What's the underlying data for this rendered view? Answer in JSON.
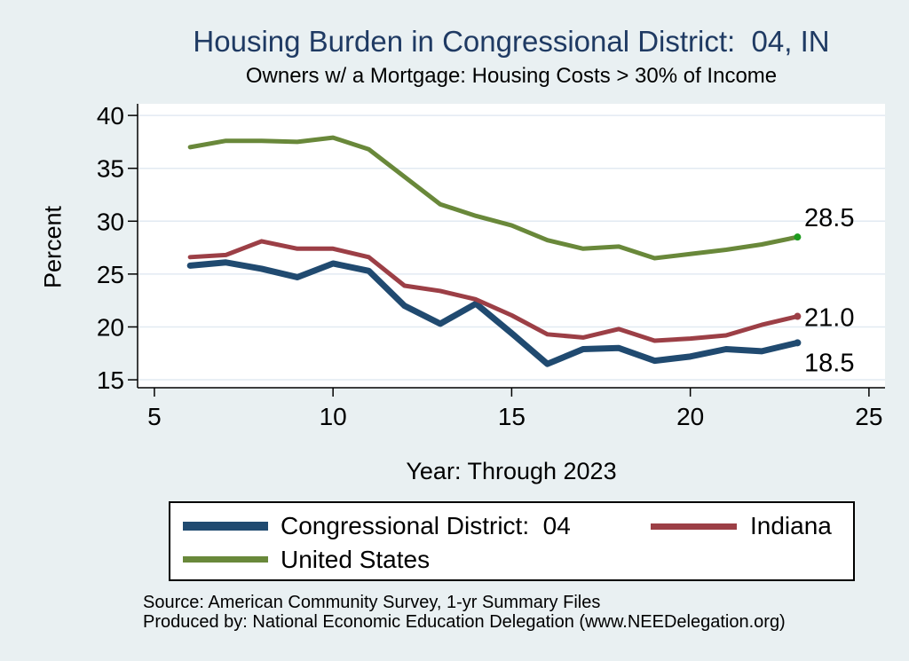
{
  "title": "Housing Burden in Congressional District:  04, IN",
  "subtitle": "Owners w/ a Mortgage: Housing Costs > 30% of Income",
  "y_axis_title": "Percent",
  "x_axis_title": "Year: Through 2023",
  "footer": {
    "source_line": "Source: American Community Survey, 1-yr Summary Files",
    "produced_line": "Produced by: National Economic Education Delegation (www.NEEDelegation.org)"
  },
  "legend": {
    "items": [
      {
        "id": "cd04",
        "label": "Congressional District:  04"
      },
      {
        "id": "indiana",
        "label": "Indiana"
      },
      {
        "id": "us",
        "label": "United States"
      }
    ]
  },
  "colors": {
    "background": "#e9f0f2",
    "plot_bg": "#ffffff",
    "gridline": "#e2eaf2",
    "axis": "#000000",
    "title": "#1f3a63",
    "cd04": "#204a70",
    "indiana": "#9c3f46",
    "us": "#69883a",
    "us_end_dot": "#1e9b1e"
  },
  "chart_data": {
    "type": "line",
    "title": "Housing Burden in Congressional District:  04, IN",
    "subtitle": "Owners w/ a Mortgage: Housing Costs > 30% of Income",
    "xlabel": "Year: Through 2023",
    "ylabel": "Percent",
    "grid": "horizontal",
    "legend_position": "bottom",
    "x": [
      6,
      7,
      8,
      9,
      10,
      11,
      12,
      13,
      14,
      15,
      16,
      17,
      18,
      19,
      20,
      21,
      22,
      23
    ],
    "xticks": [
      5,
      10,
      15,
      20,
      25
    ],
    "yticks": [
      15,
      20,
      25,
      30,
      35,
      40
    ],
    "xlim": [
      4.53,
      25.45
    ],
    "ylim": [
      14.25,
      41.1
    ],
    "series": [
      {
        "id": "cd04",
        "name": "Congressional District:  04",
        "color": "#204a70",
        "end_label": "18.5",
        "values": [
          25.8,
          26.1,
          25.5,
          24.7,
          26.0,
          25.3,
          22.0,
          20.3,
          22.2,
          19.4,
          16.5,
          17.9,
          18.0,
          16.8,
          17.2,
          17.9,
          17.7,
          18.5
        ]
      },
      {
        "id": "indiana",
        "name": "Indiana",
        "color": "#9c3f46",
        "end_label": "21.0",
        "values": [
          26.6,
          26.8,
          28.1,
          27.4,
          27.4,
          26.6,
          23.9,
          23.4,
          22.6,
          21.1,
          19.3,
          19.0,
          19.8,
          18.7,
          18.9,
          19.2,
          20.2,
          21.0
        ]
      },
      {
        "id": "us",
        "name": "United States",
        "color": "#69883a",
        "end_label": "28.5",
        "end_dot_color": "#1e9b1e",
        "values": [
          37.0,
          37.6,
          37.6,
          37.5,
          37.9,
          36.8,
          34.2,
          31.6,
          30.5,
          29.6,
          28.2,
          27.4,
          27.6,
          26.5,
          26.9,
          27.3,
          27.8,
          28.5
        ]
      }
    ]
  }
}
